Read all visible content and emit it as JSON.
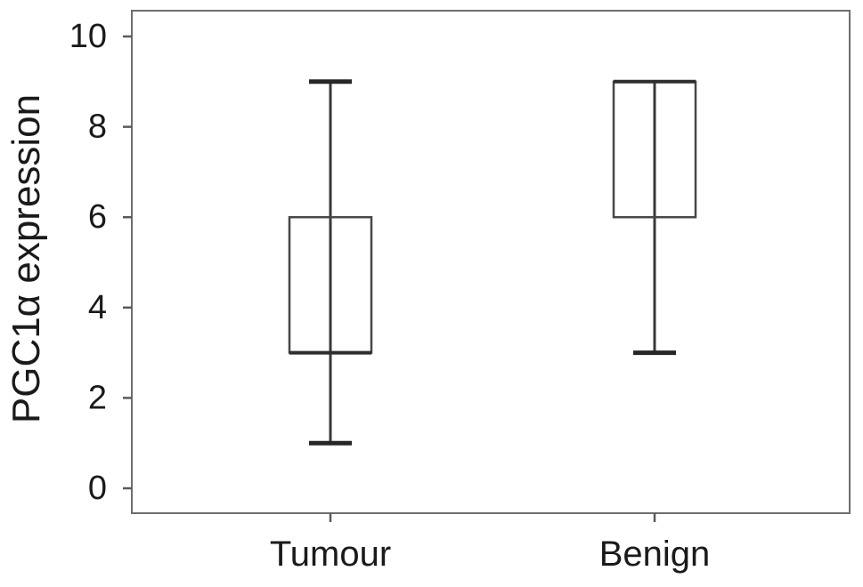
{
  "figure": {
    "background": "#ffffff"
  },
  "chart_data": {
    "type": "boxplot",
    "title": "",
    "xlabel": "",
    "ylabel": "PGC1α expression",
    "categories": [
      "Tumour",
      "Benign"
    ],
    "yticks": [
      0,
      2,
      4,
      6,
      8,
      10
    ],
    "ylim": [
      -0.57,
      10.6
    ],
    "grid": false,
    "legend": false,
    "series": [
      {
        "name": "Tumour",
        "whisker_low": 1,
        "q1": 3,
        "median": 3,
        "q3": 6,
        "whisker_high": 9
      },
      {
        "name": "Benign",
        "whisker_low": 3,
        "q1": 6,
        "median": 9,
        "q3": 9,
        "whisker_high": 9
      }
    ],
    "colors": {
      "background": "#ffffff",
      "text": "#1a1a1a",
      "frame": "#6e6e6e",
      "tick": "#5a5a5a",
      "box_stroke": "#474747",
      "whisker": "#3a3a3a",
      "cap": "#262626",
      "median": "#2e2e2e"
    }
  }
}
